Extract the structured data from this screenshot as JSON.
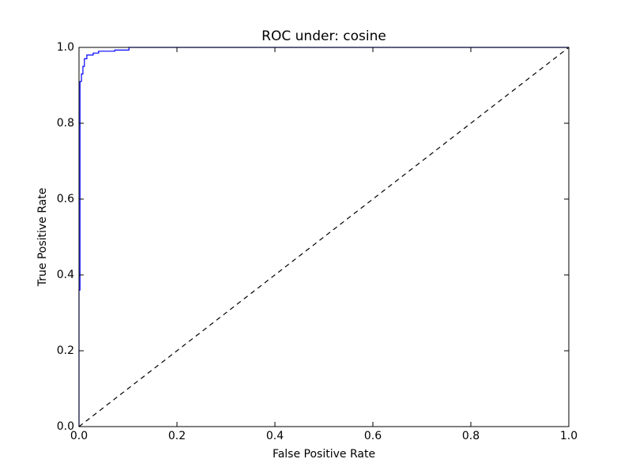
{
  "chart_data": {
    "type": "line",
    "title": "ROC under: cosine",
    "x_label": "False Positive Rate",
    "y_label": "True Positive Rate",
    "xlim": [
      0,
      1
    ],
    "ylim": [
      0,
      1
    ],
    "xticks": [
      {
        "value": 0,
        "label": "0.0"
      },
      0.2,
      0.4,
      0.6,
      0.8,
      {
        "value": 1,
        "label": "1.0"
      }
    ],
    "yticks": [
      {
        "value": 0,
        "label": "0.0"
      },
      0.2,
      0.4,
      0.6,
      0.8,
      {
        "value": 1,
        "label": "1.0"
      }
    ],
    "grid": false,
    "series": [
      {
        "color": "#0000ff",
        "linestyle": "solid",
        "x": [
          0,
          0,
          0.002,
          0.002,
          0.005,
          0.005,
          0.008,
          0.008,
          0.011,
          0.011,
          0.016,
          0.016,
          0.029,
          0.029,
          0.04,
          0.04,
          0.073,
          0.073,
          0.102,
          0.102,
          1
        ],
        "values": [
          0,
          0.36,
          0.36,
          0.91,
          0.91,
          0.93,
          0.93,
          0.95,
          0.95,
          0.97,
          0.97,
          0.98,
          0.98,
          0.985,
          0.985,
          0.99,
          0.99,
          0.993,
          0.993,
          1,
          1
        ]
      },
      {
        "color": "#000000",
        "linestyle": "dashed",
        "x": [
          0,
          1
        ],
        "values": [
          0,
          1
        ]
      }
    ]
  }
}
